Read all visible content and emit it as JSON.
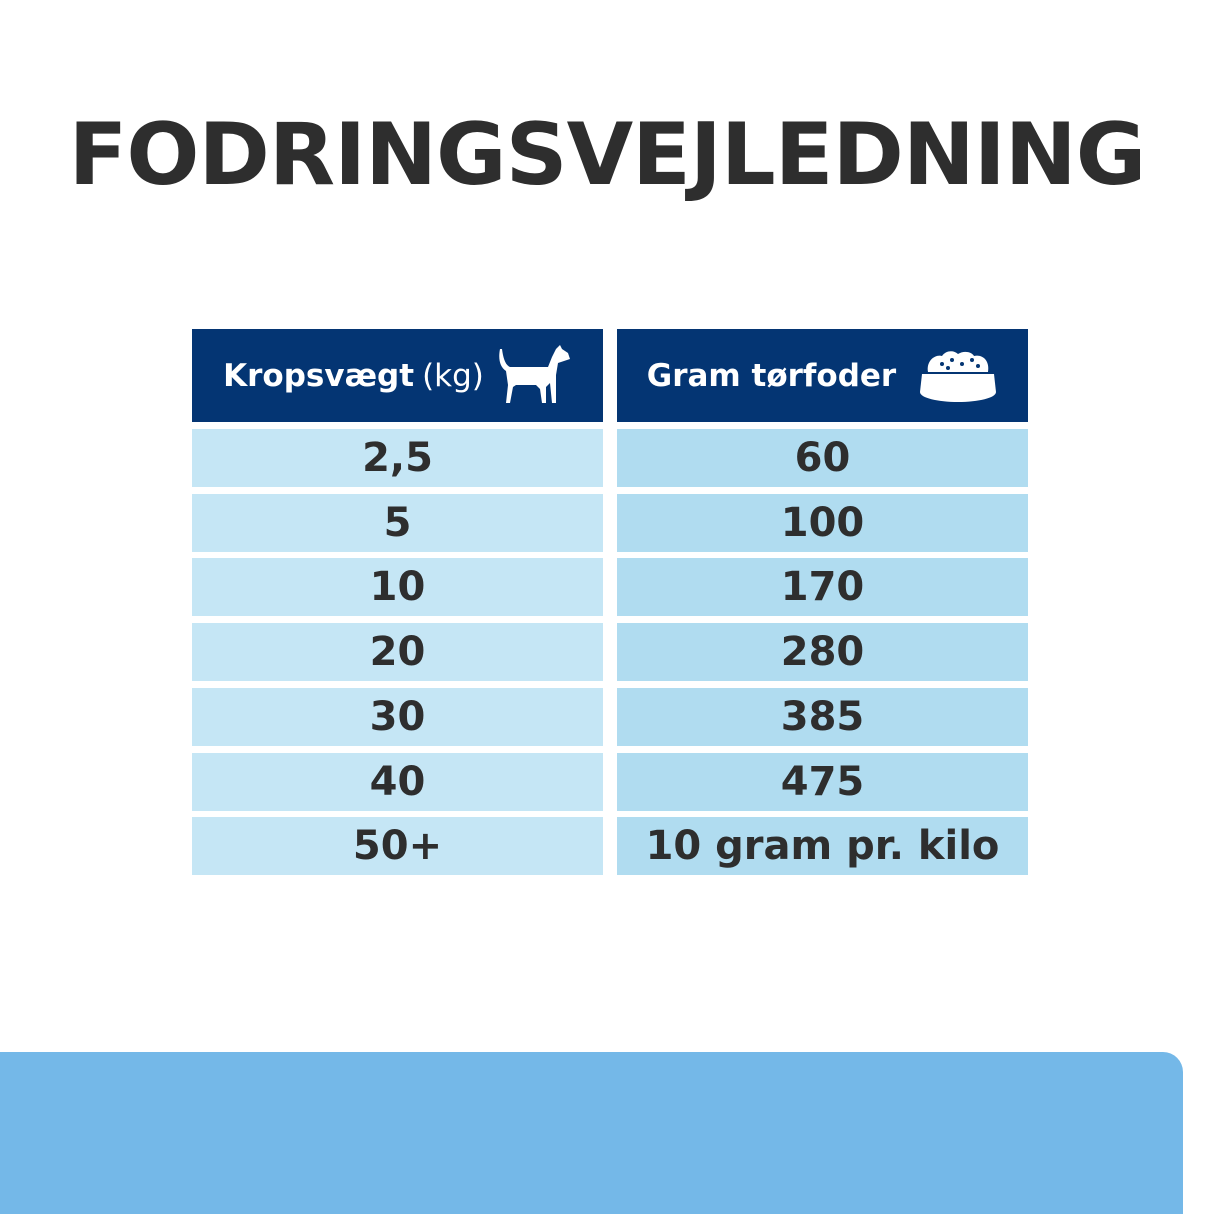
{
  "title": "FODRINGSVEJLEDNING",
  "table": {
    "headers": [
      {
        "label": "Kropsvægt",
        "unit": "(kg)",
        "icon": "dog-icon"
      },
      {
        "label": "Gram tørfoder",
        "icon": "food-bowl-icon"
      }
    ],
    "rows": [
      [
        "2,5",
        "60"
      ],
      [
        "5",
        "100"
      ],
      [
        "10",
        "170"
      ],
      [
        "20",
        "280"
      ],
      [
        "30",
        "385"
      ],
      [
        "40",
        "475"
      ],
      [
        "50+",
        "10 gram pr. kilo"
      ]
    ]
  },
  "colors": {
    "header": "#043573",
    "col1": "#c5e6f5",
    "col2": "#b0dcf0",
    "panel": "#74b8e8",
    "text": "#2e2e2e"
  }
}
